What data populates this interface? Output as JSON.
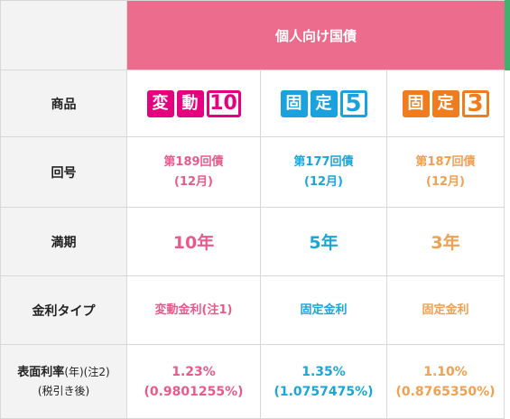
{
  "header": {
    "title": "個人向け国債"
  },
  "rows": {
    "product": {
      "label": "商品"
    },
    "issue_no": {
      "label": "回号"
    },
    "maturity": {
      "label": "満期"
    },
    "rate_type": {
      "label": "金利タイプ"
    },
    "surface_rate": {
      "label_main": "表面利率",
      "label_suffix": "(年)(注2)",
      "label_sub": "(税引き後)"
    }
  },
  "products": [
    {
      "badge_left": "変",
      "badge_mid": "動",
      "badge_num": "10",
      "issue": "第189回債",
      "issue_month": "(12月)",
      "maturity": "10年",
      "rate_type": "変動金利(注1)",
      "rate": "1.23%",
      "rate_after_tax": "(0.9801255%)",
      "color": "#e95a8c"
    },
    {
      "badge_left": "固",
      "badge_mid": "定",
      "badge_num": "5",
      "issue": "第177回債",
      "issue_month": "(12月)",
      "maturity": "5年",
      "rate_type": "固定金利",
      "rate": "1.35%",
      "rate_after_tax": "(1.0757475%)",
      "color": "#1aa6d9"
    },
    {
      "badge_left": "固",
      "badge_mid": "定",
      "badge_num": "3",
      "issue": "第187回債",
      "issue_month": "(12月)",
      "maturity": "3年",
      "rate_type": "固定金利",
      "rate": "1.10%",
      "rate_after_tax": "(0.8765350%)",
      "color": "#f0a051"
    }
  ],
  "colors": {
    "header_bg": "#ec6c8d",
    "label_bg": "#f3f3f3",
    "edge_green": "#3eb370"
  }
}
